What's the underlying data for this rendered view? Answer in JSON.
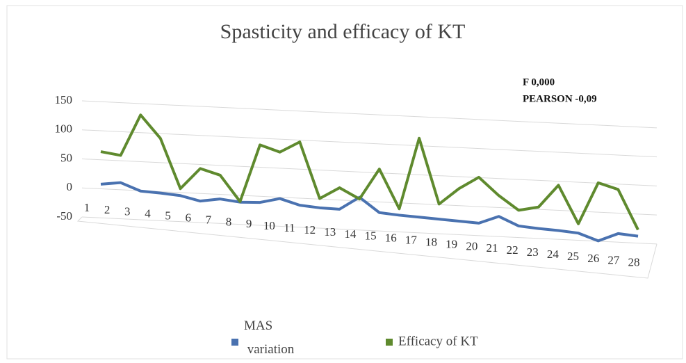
{
  "chart_data": {
    "type": "line",
    "title": "Spasticity and efficacy of KT",
    "annotations": [
      "F 0,000",
      "PEARSON -0,09"
    ],
    "categories": [
      "1",
      "2",
      "3",
      "4",
      "5",
      "6",
      "7",
      "8",
      "9",
      "10",
      "11",
      "12",
      "13",
      "14",
      "15",
      "16",
      "17",
      "18",
      "19",
      "20",
      "21",
      "22",
      "23",
      "24",
      "25",
      "26",
      "27",
      "28"
    ],
    "series": [
      {
        "name": "MAS variation",
        "color": "#4a72b0",
        "values": [
          8,
          14,
          3,
          3,
          2,
          -4,
          3,
          1,
          4,
          14,
          6,
          5,
          6,
          30,
          7,
          6,
          6,
          6,
          6,
          6,
          21,
          8,
          7,
          7,
          6,
          -4,
          12,
          11
        ]
      },
      {
        "name": "Efficacy of KT",
        "color": "#5f8a2e",
        "values": [
          64,
          61,
          134,
          97,
          14,
          52,
          44,
          2,
          103,
          94,
          115,
          21,
          43,
          27,
          82,
          17,
          142,
          32,
          62,
          85,
          57,
          35,
          44,
          85,
          22,
          96,
          88,
          22
        ]
      }
    ],
    "ylim": [
      -50,
      150
    ],
    "yticks": [
      -50,
      0,
      50,
      100,
      150
    ],
    "grid": true,
    "legend": "bottom"
  }
}
